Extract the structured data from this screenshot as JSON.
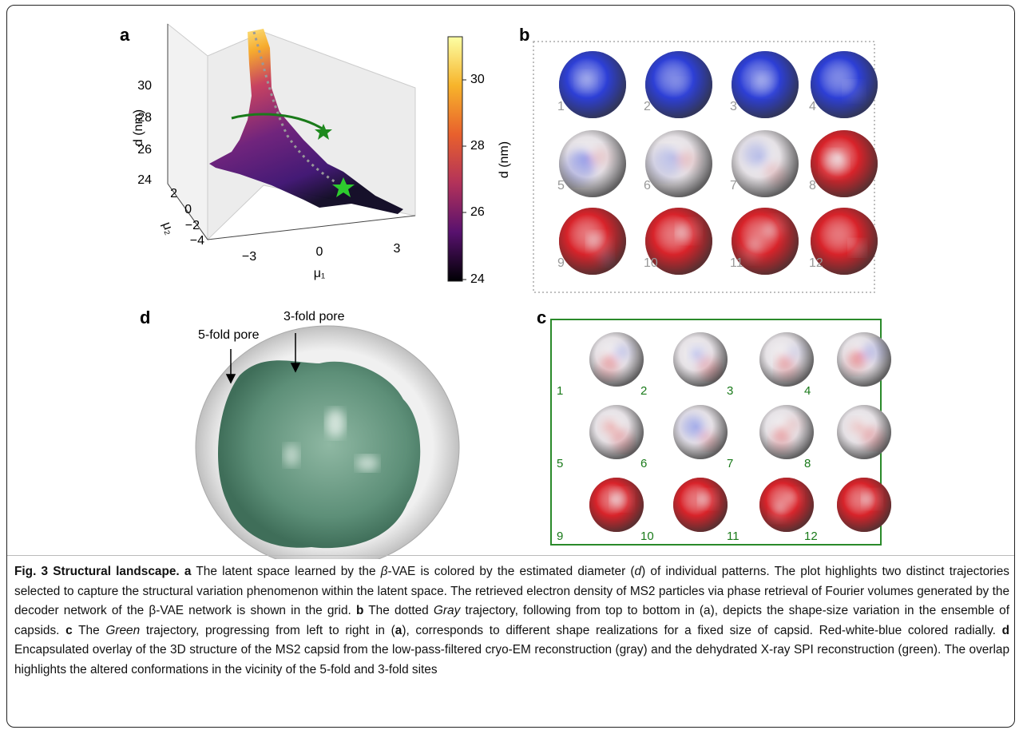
{
  "panel_labels": [
    "a",
    "b",
    "c",
    "d"
  ],
  "panel_a": {
    "z_label": "d (nm)",
    "z_ticks": [
      "30",
      "28",
      "26",
      "24"
    ],
    "y_label": "μ₂",
    "y_ticks": [
      "2",
      "0",
      "−2",
      "−4"
    ],
    "x_label": "μ₁",
    "x_ticks": [
      "−3",
      "0",
      "3"
    ],
    "colorbar": {
      "label": "d (nm)",
      "ticks": [
        "30",
        "28",
        "26",
        "24"
      ]
    }
  },
  "panel_b": {
    "labels": [
      "1",
      "2",
      "3",
      "4",
      "5",
      "6",
      "7",
      "8",
      "9",
      "10",
      "11",
      "12"
    ]
  },
  "panel_c": {
    "labels": [
      "1",
      "2",
      "3",
      "4",
      "5",
      "6",
      "7",
      "8",
      "9",
      "10",
      "11",
      "12"
    ]
  },
  "panel_d": {
    "annotations": [
      "5-fold pore",
      "3-fold pore"
    ]
  },
  "caption": [
    "Fig. 3 Structural landscape.",
    "a",
    "The latent space learned by the",
    "β",
    "-VAE is colored by the estimated diameter (",
    "d",
    ") of individual patterns. The plot highlights two distinct trajectories selected to capture the structural variation phenomenon within the latent space. The retrieved electron density of MS2 particles via phase retrieval of Fourier volumes generated by the decoder network of the β-VAE network is shown in the grid.",
    "b",
    "The dotted",
    "Gray",
    "trajectory, following from top to bottom in (a), depicts the shape-size variation in the ensemble of capsids.",
    "c",
    "The",
    "Green",
    "trajectory, progressing from left to right in (",
    "a",
    "), corresponds to different shape realizations for a fixed size of capsid. Red-white-blue colored radially.",
    "d",
    "Encapsulated overlay of the 3D structure of the MS2 capsid from the low-pass-filtered cryo-EM reconstruction (gray) and the dehydrated X-ray SPI reconstruction (green). The overlap highlights the altered conformations in the vicinity of the 5-fold and 3-fold sites"
  ]
}
